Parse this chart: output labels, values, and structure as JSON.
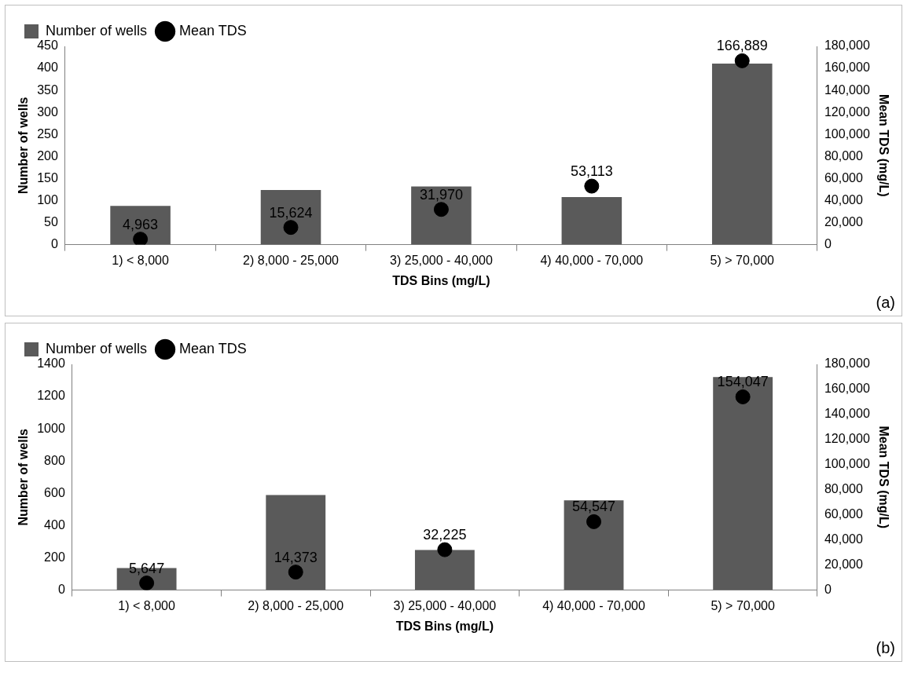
{
  "chart_data": [
    {
      "type": "bar",
      "categories": [
        "1) < 8,000",
        "2) 8,000 - 25,000",
        "3) 25,000 - 40,000",
        "4) 40,000 - 70,000",
        "5) > 70,000"
      ],
      "series": [
        {
          "name": "Number of wells",
          "color": "#5a5a5a",
          "values": [
            88,
            124,
            132,
            108,
            411
          ]
        },
        {
          "name": "Mean TDS",
          "type": "scatter",
          "axis": "y2",
          "color": "#000000",
          "x": [
            "1) < 8,000",
            "2) 8,000 - 25,000",
            "3) 25,000 - 40,000",
            "4) 40,000 - 70,000",
            "5) > 70,000"
          ],
          "values": [
            4963,
            15624,
            31970,
            53113,
            166889
          ],
          "value_labels": [
            "4,963",
            "15,624",
            "31,970",
            "53,113",
            "166,889"
          ]
        }
      ],
      "xlabel": "TDS Bins (mg/L)",
      "ylabel": "Number of wells",
      "y2label": "Mean TDS (mg/L)",
      "ylim": [
        0,
        450
      ],
      "yticks": [
        0,
        50,
        100,
        150,
        200,
        250,
        300,
        350,
        400,
        450
      ],
      "y2lim": [
        0,
        180000
      ],
      "y2ticks": [
        {
          "value": 0,
          "label": "0"
        },
        {
          "value": 20000,
          "label": "20,000"
        },
        {
          "value": 40000,
          "label": "40,000"
        },
        {
          "value": 60000,
          "label": "60,000"
        },
        {
          "value": 80000,
          "label": "80,000"
        },
        {
          "value": 100000,
          "label": "100,000"
        },
        {
          "value": 120000,
          "label": "120,000"
        },
        {
          "value": 140000,
          "label": "140,000"
        },
        {
          "value": 160000,
          "label": "160,000"
        },
        {
          "value": 180000,
          "label": "180,000"
        }
      ],
      "legend": "top left",
      "marker": "circle",
      "grid": false,
      "annotations": [
        "(a)"
      ]
    },
    {
      "type": "bar",
      "categories": [
        "1) < 8,000",
        "2) 8,000 - 25,000",
        "3) 25,000 - 40,000",
        "4) 40,000 - 70,000",
        "5) > 70,000"
      ],
      "series": [
        {
          "name": "Number of wells",
          "color": "#5a5a5a",
          "values": [
            137,
            590,
            249,
            557,
            1321
          ]
        },
        {
          "name": "Mean TDS",
          "type": "scatter",
          "axis": "y2",
          "color": "#000000",
          "x": [
            "1) < 8,000",
            "2) 8,000 - 25,000",
            "3) 25,000 - 40,000",
            "4) 40,000 - 70,000",
            "5) > 70,000"
          ],
          "values": [
            5647,
            14373,
            32225,
            54547,
            154047
          ],
          "value_labels": [
            "5,647",
            "14,373",
            "32,225",
            "54,547",
            "154,047"
          ]
        }
      ],
      "xlabel": "TDS Bins (mg/L)",
      "ylabel": "Number of wells",
      "y2label": "Mean TDS (mg/L)",
      "ylim": [
        0,
        1400
      ],
      "yticks": [
        0,
        200,
        400,
        600,
        800,
        1000,
        1200,
        1400
      ],
      "y2lim": [
        0,
        180000
      ],
      "y2ticks": [
        {
          "value": 0,
          "label": "0"
        },
        {
          "value": 20000,
          "label": "20,000"
        },
        {
          "value": 40000,
          "label": "40,000"
        },
        {
          "value": 60000,
          "label": "60,000"
        },
        {
          "value": 80000,
          "label": "80,000"
        },
        {
          "value": 100000,
          "label": "100,000"
        },
        {
          "value": 120000,
          "label": "120,000"
        },
        {
          "value": 140000,
          "label": "140,000"
        },
        {
          "value": 160000,
          "label": "160,000"
        },
        {
          "value": 180000,
          "label": "180,000"
        }
      ],
      "legend": "top left",
      "marker": "circle",
      "grid": false,
      "annotations": [
        "(b)"
      ]
    }
  ]
}
